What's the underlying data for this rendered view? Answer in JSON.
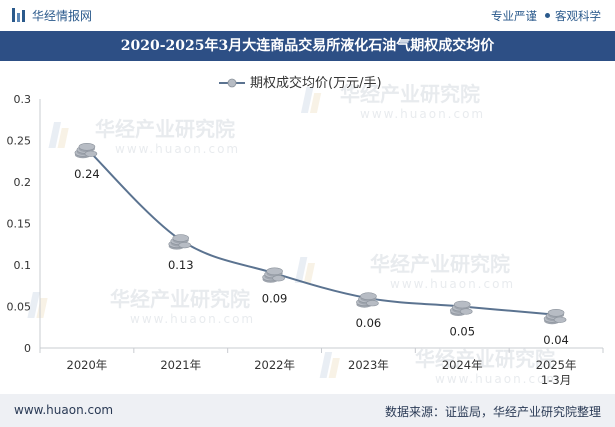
{
  "header": {
    "logo_text": "华经情报网",
    "slogan_1": "专业严谨",
    "slogan_2": "客观科学"
  },
  "title": "2020-2025年3月大连商品交易所液化石油气期权成交均价",
  "footer": {
    "website": "www.huaon.com",
    "source": "数据来源：证监局，华经产业研究院整理"
  },
  "watermark": {
    "cn": "华经产业研究院",
    "en": "www.huaon.com"
  },
  "colors": {
    "title_bar": "#2d4f85",
    "line": "#5b7390",
    "marker": "#b7bcc4",
    "footer_bg": "#eef0f4"
  },
  "chart_data": {
    "type": "line",
    "categories": [
      "2020年",
      "2021年",
      "2022年",
      "2023年",
      "2024年",
      "2025年\n1-3月"
    ],
    "series": [
      {
        "name": "期权成交均价(万元/手)",
        "values": [
          0.24,
          0.13,
          0.09,
          0.06,
          0.05,
          0.04
        ]
      }
    ],
    "data_labels": [
      "0.24",
      "0.13",
      "0.09",
      "0.06",
      "0.05",
      "0.04"
    ],
    "y_ticks": [
      "0",
      "0.05",
      "0.1",
      "0.15",
      "0.2",
      "0.25",
      "0.3"
    ],
    "ylim": [
      0,
      0.3
    ],
    "legend_position": "top",
    "grid": false,
    "smooth": true
  }
}
